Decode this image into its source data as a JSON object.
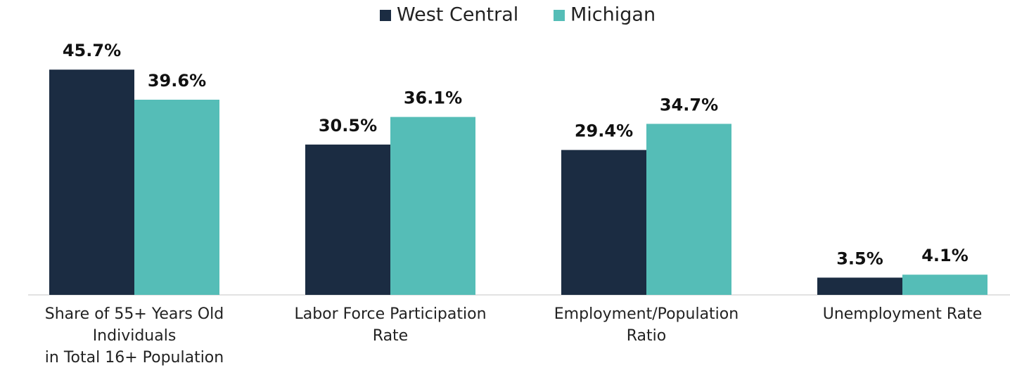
{
  "chart_data": {
    "type": "bar",
    "categories": [
      "Share of 55+ Years Old\nIndividuals\nin Total 16+ Population",
      "Labor Force Participation\nRate",
      "Employment/Population\nRatio",
      "Unemployment Rate"
    ],
    "series": [
      {
        "name": "West Central",
        "color": "#1b2c42",
        "values": [
          45.7,
          30.5,
          29.4,
          3.5
        ],
        "value_labels": [
          "45.7%",
          "30.5%",
          "29.4%",
          "3.5%"
        ]
      },
      {
        "name": "Michigan",
        "color": "#55bdb7",
        "values": [
          39.6,
          36.1,
          34.7,
          4.1
        ],
        "value_labels": [
          "39.6%",
          "36.1%",
          "34.7%",
          "4.1%"
        ]
      }
    ],
    "ylim": [
      0,
      50
    ],
    "legend": "top"
  }
}
